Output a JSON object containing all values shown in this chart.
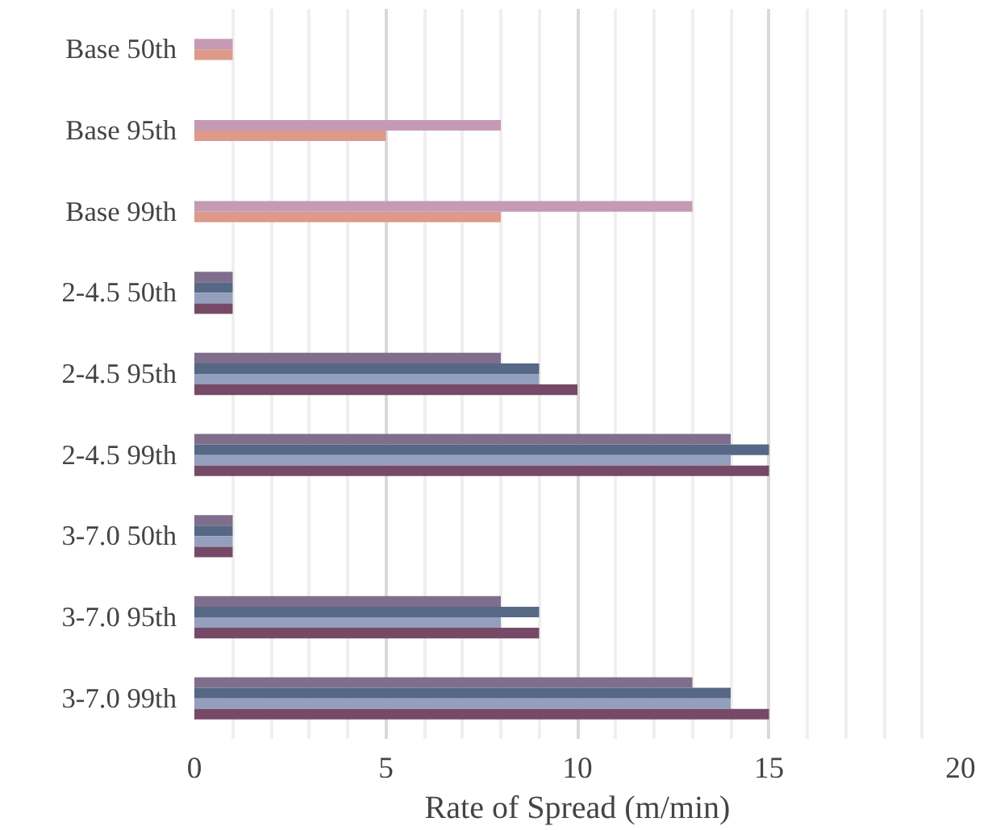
{
  "chart_data": {
    "type": "bar",
    "orientation": "horizontal",
    "xlabel": "Rate of Spread (m/min)",
    "categories": [
      "Base 50th",
      "Base 95th",
      "Base 99th",
      "2-4.5 50th",
      "2-4.5 95th",
      "2-4.5 99th",
      "3-7.0 50th",
      "3-7.0 95th",
      "3-7.0 99th"
    ],
    "series": [
      {
        "color": "#c49ab4",
        "values": [
          1,
          8,
          13,
          null,
          null,
          null,
          null,
          null,
          null
        ]
      },
      {
        "color": "#dd9a8a",
        "values": [
          1,
          5,
          8,
          null,
          null,
          null,
          null,
          null,
          null
        ]
      },
      {
        "color": "#7f6e8c",
        "values": [
          null,
          null,
          null,
          1,
          8,
          14,
          1,
          8,
          13
        ]
      },
      {
        "color": "#566885",
        "values": [
          null,
          null,
          null,
          1,
          9,
          15,
          1,
          9,
          14
        ]
      },
      {
        "color": "#949fbd",
        "values": [
          null,
          null,
          null,
          1,
          9,
          14,
          1,
          8,
          14
        ]
      },
      {
        "color": "#764a66",
        "values": [
          null,
          null,
          null,
          1,
          10,
          15,
          1,
          9,
          15
        ]
      }
    ],
    "xlim": [
      0,
      20
    ],
    "xticks": [
      0,
      5,
      10,
      15,
      20
    ],
    "grid": "x"
  }
}
